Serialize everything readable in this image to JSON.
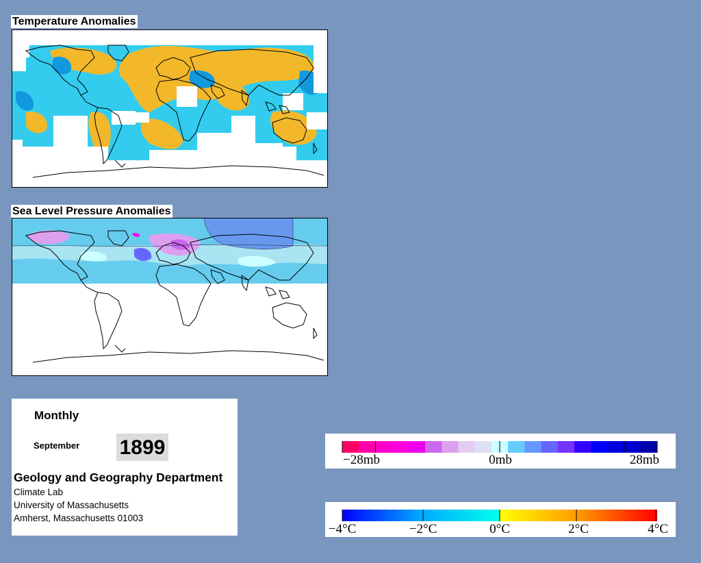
{
  "temperature_map": {
    "title": "Temperature Anomalies"
  },
  "slp_map": {
    "title": "Sea Level Pressure Anomalies"
  },
  "info": {
    "period": "Monthly",
    "month": "September",
    "year": "1899",
    "department": "Geology and Geography Department",
    "address_lines": [
      "Climate Lab",
      "University of Massachusetts",
      "Amherst, Massachusetts 01003"
    ]
  },
  "pressure_legend": {
    "labels": [
      "−28mb",
      "0mb",
      "28mb"
    ],
    "colors": [
      "#ff0066",
      "#ff00aa",
      "#ff00cc",
      "#ff00dd",
      "#ee00ee",
      "#cc66ee",
      "#dda0ee",
      "#e6ccf2",
      "#dde0f5",
      "#ccffff",
      "#66ccff",
      "#6699ff",
      "#6666ff",
      "#7733ff",
      "#3300ff",
      "#0000ff",
      "#0000dd",
      "#0000cc",
      "#0000aa"
    ]
  },
  "temperature_legend": {
    "labels": [
      "−4°C",
      "−2°C",
      "0°C",
      "2°C",
      "4°C"
    ],
    "colors": {
      "cold_end": "#0000ff",
      "cold_mid": "#00aaff",
      "zero_cold": "#00ffee",
      "zero_warm": "#ffff00",
      "warm_mid": "#ff9900",
      "warm_end": "#ff0000"
    }
  }
}
